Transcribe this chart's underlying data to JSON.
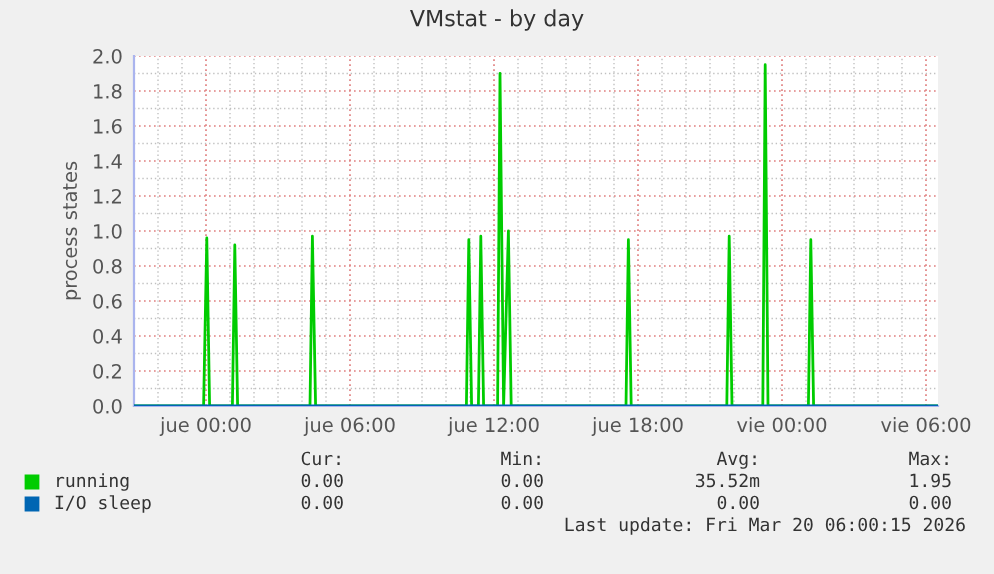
{
  "chart_data": {
    "type": "line",
    "title": "VMstat - by day",
    "ylabel": "process states",
    "series": [
      {
        "name": "running",
        "color": "#00cc00",
        "x": [
          "2026-03-18T21:00",
          "2026-03-18T23:54",
          "2026-03-19T00:02",
          "2026-03-19T00:09",
          "2026-03-19T01:06",
          "2026-03-19T01:12",
          "2026-03-19T01:19",
          "2026-03-19T04:20",
          "2026-03-19T04:26",
          "2026-03-19T04:34",
          "2026-03-19T10:51",
          "2026-03-19T10:57",
          "2026-03-19T11:04",
          "2026-03-19T11:21",
          "2026-03-19T11:27",
          "2026-03-19T11:34",
          "2026-03-19T12:09",
          "2026-03-19T12:15",
          "2026-03-19T12:24",
          "2026-03-19T12:36",
          "2026-03-19T12:43",
          "2026-03-19T17:30",
          "2026-03-19T17:36",
          "2026-03-19T17:43",
          "2026-03-19T21:42",
          "2026-03-19T21:48",
          "2026-03-19T21:55",
          "2026-03-19T23:12",
          "2026-03-19T23:18",
          "2026-03-19T23:25",
          "2026-03-20T01:06",
          "2026-03-20T01:12",
          "2026-03-20T01:19",
          "2026-03-20T06:30"
        ],
        "values": [
          0,
          0,
          0.96,
          0,
          0,
          0.92,
          0,
          0,
          0.97,
          0,
          0,
          0.95,
          0,
          0,
          0.97,
          0,
          0,
          1.9,
          0,
          1.0,
          0,
          0,
          0.95,
          0,
          0,
          0.97,
          0,
          0,
          1.95,
          0,
          0,
          0.95,
          0,
          0
        ]
      },
      {
        "name": "I/O sleep",
        "color": "#0066b3",
        "x": [
          "2026-03-18T21:00",
          "2026-03-20T06:30"
        ],
        "values": [
          0,
          0
        ]
      }
    ],
    "xlim": [
      "2026-03-18T21:00",
      "2026-03-20T06:30"
    ],
    "xticks": [
      {
        "value": "2026-03-19T00:00",
        "label": "jue 00:00"
      },
      {
        "value": "2026-03-19T06:00",
        "label": "jue 06:00"
      },
      {
        "value": "2026-03-19T12:00",
        "label": "jue 12:00"
      },
      {
        "value": "2026-03-19T18:00",
        "label": "jue 18:00"
      },
      {
        "value": "2026-03-20T00:00",
        "label": "vie 00:00"
      },
      {
        "value": "2026-03-20T06:00",
        "label": "vie 06:00"
      }
    ],
    "ylim": [
      0,
      2.0
    ],
    "yticks": [
      {
        "value": 0,
        "label": "0.0"
      },
      {
        "value": 0.2,
        "label": "0.2"
      },
      {
        "value": 0.4,
        "label": "0.4"
      },
      {
        "value": 0.6,
        "label": "0.6"
      },
      {
        "value": 0.8,
        "label": "0.8"
      },
      {
        "value": 1.0,
        "label": "1.0"
      },
      {
        "value": 1.2,
        "label": "1.2"
      },
      {
        "value": 1.4,
        "label": "1.4"
      },
      {
        "value": 1.6,
        "label": "1.6"
      },
      {
        "value": 1.8,
        "label": "1.8"
      },
      {
        "value": 2.0,
        "label": "2.0"
      }
    ],
    "grid": true,
    "legend": "bottom",
    "annotations": [
      "Cur:",
      "Min:",
      "Avg:",
      "Max:",
      "0.00",
      "0.00",
      "35.52m",
      "1.95",
      "0.00",
      "0.00",
      "0.00",
      "0.00",
      "Last update: Fri Mar 20 06:00:15 2026"
    ]
  }
}
